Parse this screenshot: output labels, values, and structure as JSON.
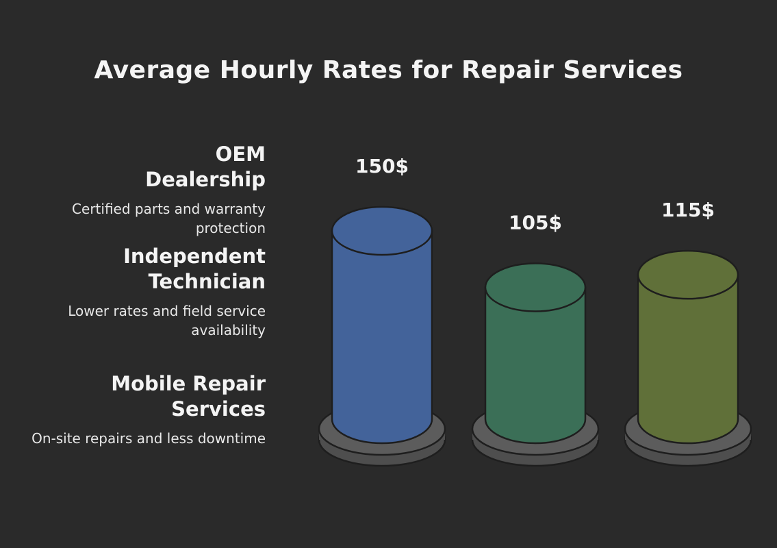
{
  "title": "Average Hourly Rates for Repair Services",
  "items": [
    {
      "heading": "OEM Dealership",
      "description": "Certified parts and warranty protection"
    },
    {
      "heading": "Independent Technician",
      "description": "Lower rates and field service availability"
    },
    {
      "heading": "Mobile Repair Services",
      "description": "On-site repairs and less downtime"
    }
  ],
  "chart_data": {
    "type": "bar",
    "categories": [
      "OEM Dealership",
      "Independent Technician",
      "Mobile Repair Services"
    ],
    "values": [
      150,
      105,
      115
    ],
    "value_labels": [
      "150$",
      "105$",
      "115$"
    ],
    "colors": [
      "#43639a",
      "#3b6f57",
      "#607039"
    ],
    "base_color": "#5c5c5c",
    "title": "Average Hourly Rates for Repair Services"
  }
}
